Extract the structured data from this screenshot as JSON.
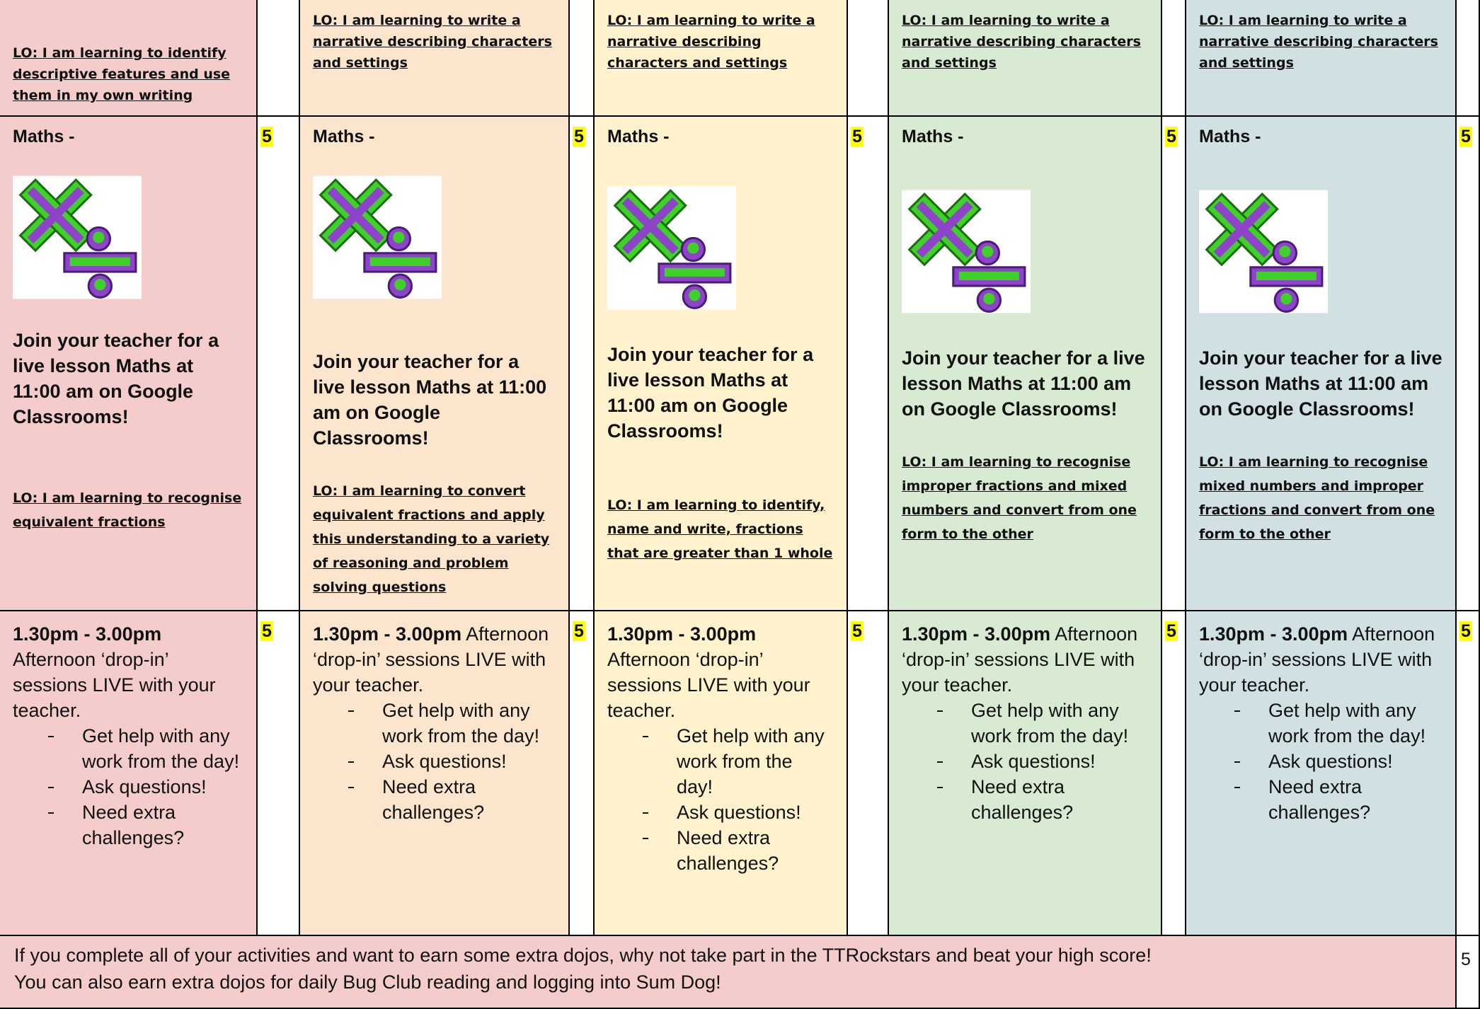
{
  "days": [
    {
      "lo": "LO: I am learning to identify descriptive features and use them in my own writing",
      "maths": {
        "title": "Maths -",
        "points": 5,
        "live": "Join your teacher for a live lesson Maths at 11:00 am on Google Classrooms!",
        "lo": "LO: I am learning to recognise equivalent fractions"
      },
      "afternoon": {
        "time": "1.30pm - 3.00pm",
        "text": "Afternoon ‘drop-in’ sessions LIVE with your teacher.",
        "points": 5,
        "bullets": [
          "Get help with any work from the day!",
          "Ask questions!",
          "Need extra challenges?"
        ]
      }
    },
    {
      "lo": "LO:  I am learning to write a narrative describing characters and settings",
      "maths": {
        "title": "Maths -",
        "points": 5,
        "live": "Join your teacher for a live lesson Maths at 11:00 am on Google Classrooms!",
        "lo": "LO: I am learning to convert equivalent fractions and apply this understanding to a variety of reasoning and problem solving questions"
      },
      "afternoon": {
        "time": "1.30pm - 3.00pm",
        "text": "Afternoon ‘drop-in’ sessions LIVE with your teacher.",
        "points": 5,
        "bullets": [
          "Get help with any work from the day!",
          "Ask questions!",
          "Need extra challenges?"
        ]
      }
    },
    {
      "lo": "LO:  I am learning to write a narrative describing characters and settings",
      "maths": {
        "title": "Maths -",
        "points": 5,
        "live": "Join your teacher for a live lesson Maths at 11:00 am on Google Classrooms!",
        "lo": "LO: I am learning to identify, name and write, fractions that are greater than 1 whole"
      },
      "afternoon": {
        "time": "1.30pm - 3.00pm",
        "text": "Afternoon ‘drop-in’ sessions LIVE with your teacher.",
        "points": 5,
        "bullets": [
          "Get help with any work from the day!",
          "Ask questions!",
          "Need extra challenges?"
        ]
      }
    },
    {
      "lo": "LO:  I am learning to write a narrative describing characters and settings",
      "maths": {
        "title": "Maths -",
        "points": 5,
        "live": "Join your teacher for a live lesson Maths at 11:00 am on Google Classrooms!",
        "lo": "LO: I am learning to recognise improper fractions and mixed numbers and convert from one form to the other"
      },
      "afternoon": {
        "time": "1.30pm - 3.00pm",
        "text": "Afternoon ‘drop-in’ sessions LIVE with your teacher.",
        "points": 5,
        "bullets": [
          "Get help with any work from the day!",
          "Ask questions!",
          "Need extra challenges?"
        ]
      }
    },
    {
      "lo": "LO:  I am learning to write a narrative describing characters and settings",
      "maths": {
        "title": "Maths -",
        "points": 5,
        "live": "Join your teacher for a live lesson Maths at 11:00 am on Google Classrooms!",
        "lo": "LO: I am learning to recognise mixed numbers and improper fractions and convert from one form to the other"
      },
      "afternoon": {
        "time": "1.30pm - 3.00pm",
        "text": "Afternoon ‘drop-in’ sessions LIVE with your teacher.",
        "points": 5,
        "bullets": [
          "Get help with any work from the day!",
          "Ask questions!",
          "Need extra challenges?"
        ]
      }
    }
  ],
  "footer": {
    "lines": [
      "If you complete all of your activities and want to earn some extra dojos, why not take part in the TTRockstars and beat your high score!",
      "You can also earn extra dojos for daily Bug Club reading and logging into Sum Dog!"
    ],
    "points": 5
  }
}
